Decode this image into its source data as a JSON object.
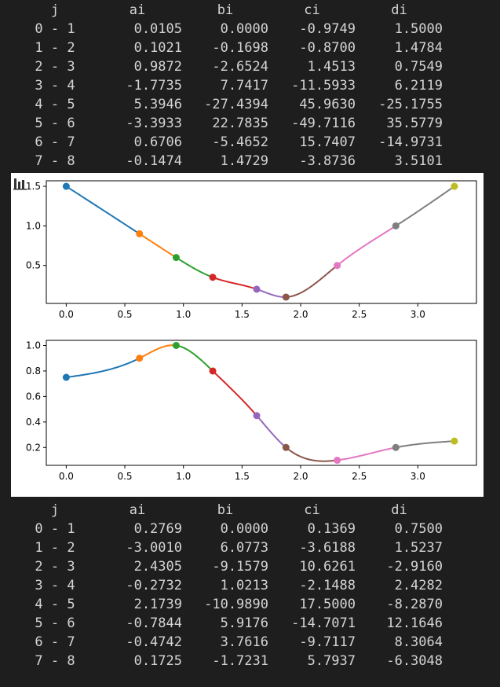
{
  "table_top": {
    "headers": [
      "j",
      "ai",
      "bi",
      "ci",
      "di"
    ],
    "rows": [
      [
        "0 - 1",
        "0.0105",
        "0.0000",
        "-0.9749",
        "1.5000"
      ],
      [
        "1 - 2",
        "0.1021",
        "-0.1698",
        "-0.8700",
        "1.4784"
      ],
      [
        "2 - 3",
        "0.9872",
        "-2.6524",
        "1.4513",
        "0.7549"
      ],
      [
        "3 - 4",
        "-1.7735",
        "7.7417",
        "-11.5933",
        "6.2119"
      ],
      [
        "4 - 5",
        "5.3946",
        "-27.4394",
        "45.9630",
        "-25.1755"
      ],
      [
        "5 - 6",
        "-3.3933",
        "22.7835",
        "-49.7116",
        "35.5779"
      ],
      [
        "6 - 7",
        "0.6706",
        "-5.4652",
        "15.7407",
        "-14.9731"
      ],
      [
        "7 - 8",
        "-0.1474",
        "1.4729",
        "-3.8736",
        "3.5101"
      ]
    ]
  },
  "table_bottom": {
    "headers": [
      "j",
      "ai",
      "bi",
      "ci",
      "di"
    ],
    "rows": [
      [
        "0 - 1",
        "0.2769",
        "0.0000",
        "0.1369",
        "0.7500"
      ],
      [
        "1 - 2",
        "-3.0010",
        "6.0773",
        "-3.6188",
        "1.5237"
      ],
      [
        "2 - 3",
        "2.4305",
        "-9.1579",
        "10.6261",
        "-2.9160"
      ],
      [
        "3 - 4",
        "-0.2732",
        "1.0213",
        "-2.1488",
        "2.4282"
      ],
      [
        "4 - 5",
        "2.1739",
        "-10.9890",
        "17.5000",
        "-8.2870"
      ],
      [
        "5 - 6",
        "-0.7844",
        "5.9176",
        "-14.7071",
        "12.1646"
      ],
      [
        "6 - 7",
        "-0.4742",
        "3.7616",
        "-9.7117",
        "8.3064"
      ],
      [
        "7 - 8",
        "0.1725",
        "-1.7231",
        "5.7937",
        "-6.3048"
      ]
    ]
  },
  "toolbar": {
    "icon": "chart-toolbar-icon"
  },
  "chart_data": [
    {
      "type": "line",
      "x": [
        0.0,
        0.625,
        0.938,
        1.25,
        1.625,
        1.875,
        2.312,
        2.812,
        3.312
      ],
      "y": [
        1.5,
        0.9,
        0.6,
        0.35,
        0.2,
        0.1,
        0.5,
        1.0,
        1.5
      ],
      "xlim": [
        -0.17,
        3.5
      ],
      "ylim": [
        0.02,
        1.57
      ],
      "xticks": [
        "0.0",
        "0.5",
        "1.0",
        "1.5",
        "2.0",
        "2.5",
        "3.0"
      ],
      "yticks": [
        "0.5",
        "1.0",
        "1.5"
      ],
      "segment_colors": [
        "#1f77b4",
        "#ff7f0e",
        "#2ca02c",
        "#d62728",
        "#9467bd",
        "#8c564b",
        "#e377c2",
        "#7f7f7f"
      ],
      "point_colors": [
        "#1f77b4",
        "#ff7f0e",
        "#2ca02c",
        "#d62728",
        "#9467bd",
        "#8c564b",
        "#e377c2",
        "#7f7f7f",
        "#bcbd22"
      ],
      "grid": false,
      "xlabel": "",
      "ylabel": "",
      "title": ""
    },
    {
      "type": "line",
      "x": [
        0.0,
        0.625,
        0.938,
        1.25,
        1.625,
        1.875,
        2.312,
        2.812,
        3.312
      ],
      "y": [
        0.75,
        0.9,
        1.0,
        0.8,
        0.45,
        0.2,
        0.1,
        0.2,
        0.25
      ],
      "xlim": [
        -0.17,
        3.5
      ],
      "ylim": [
        0.06,
        1.04
      ],
      "xticks": [
        "0.0",
        "0.5",
        "1.0",
        "1.5",
        "2.0",
        "2.5",
        "3.0"
      ],
      "yticks": [
        "0.2",
        "0.4",
        "0.6",
        "0.8",
        "1.0"
      ],
      "segment_colors": [
        "#1f77b4",
        "#ff7f0e",
        "#2ca02c",
        "#d62728",
        "#9467bd",
        "#8c564b",
        "#e377c2",
        "#7f7f7f"
      ],
      "point_colors": [
        "#1f77b4",
        "#ff7f0e",
        "#2ca02c",
        "#d62728",
        "#9467bd",
        "#8c564b",
        "#e377c2",
        "#7f7f7f",
        "#bcbd22"
      ],
      "grid": false,
      "xlabel": "",
      "ylabel": "",
      "title": ""
    }
  ]
}
